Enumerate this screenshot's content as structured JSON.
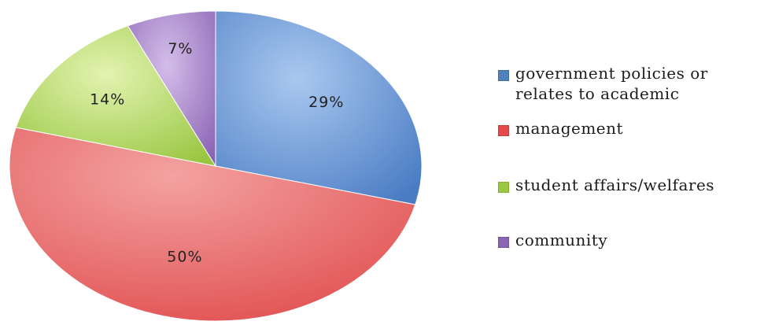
{
  "chart_data": {
    "type": "pie",
    "categories": [
      "government policies or relates to academic",
      "management",
      "student affairs/welfares",
      "community"
    ],
    "values": [
      29,
      50,
      14,
      7
    ],
    "labels": [
      "29%",
      "50%",
      "14%",
      "7%"
    ],
    "colors": [
      "#4f81bd",
      "#e5494a",
      "#9bc942",
      "#8b64b2"
    ],
    "title": "",
    "legend_position": "right"
  },
  "legend": {
    "items": [
      {
        "label": "government policies or relates to academic",
        "color": "#4f81bd"
      },
      {
        "label": "management",
        "color": "#e5494a"
      },
      {
        "label": "student affairs/welfares",
        "color": "#9bc942"
      },
      {
        "label": "community",
        "color": "#8b64b2"
      }
    ]
  }
}
